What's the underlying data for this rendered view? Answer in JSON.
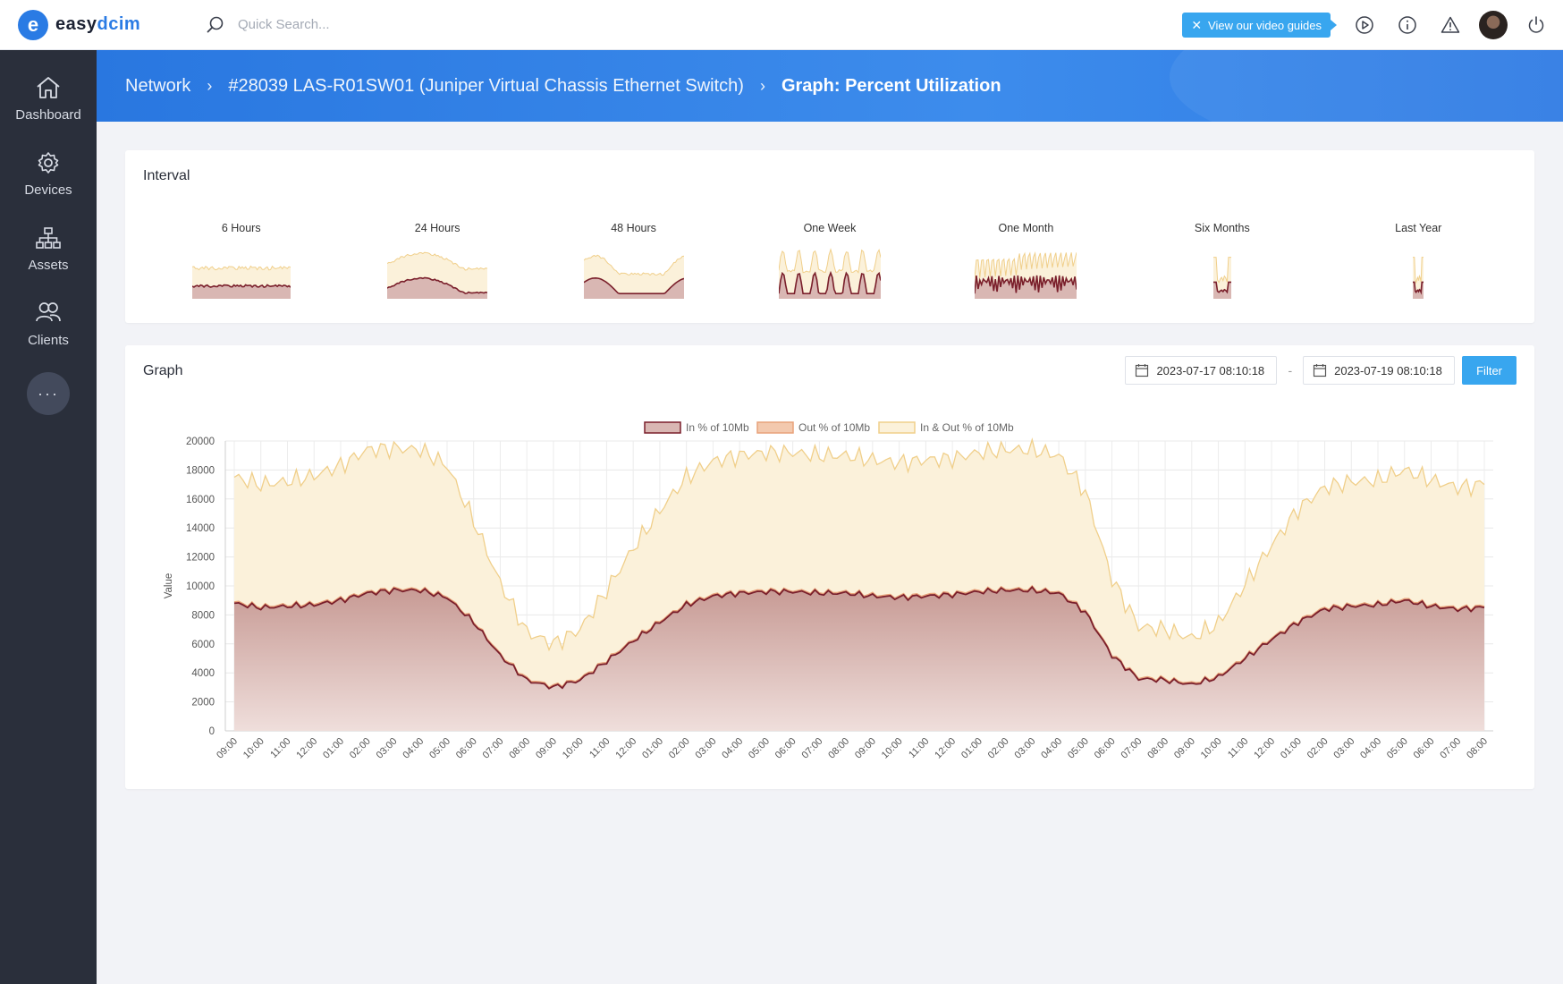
{
  "topbar": {
    "logo_letter": "e",
    "logo_text_a": "easy",
    "logo_text_b": "dcim",
    "search_placeholder": "Quick Search...",
    "guide_label": "View our video guides",
    "icons": [
      "play-circle-icon",
      "info-icon",
      "warning-icon",
      "avatar",
      "power-icon"
    ]
  },
  "sidebar": {
    "items": [
      {
        "label": "Dashboard",
        "icon": "home-icon"
      },
      {
        "label": "Devices",
        "icon": "gear-icon"
      },
      {
        "label": "Assets",
        "icon": "hierarchy-icon"
      },
      {
        "label": "Clients",
        "icon": "users-icon"
      }
    ],
    "more_label": "···"
  },
  "breadcrumb": {
    "items": [
      "Network",
      "#28039 LAS-R01SW01 (Juniper Virtual Chassis Ethernet Switch)",
      "Graph: Percent Utilization"
    ]
  },
  "interval": {
    "title": "Interval",
    "thumbs": [
      "6 Hours",
      "24 Hours",
      "48 Hours",
      "One Week",
      "One Month",
      "Six Months",
      "Last Year"
    ]
  },
  "graph": {
    "title": "Graph",
    "date_from": "2023-07-17 08:10:18",
    "date_sep": "-",
    "date_to": "2023-07-19 08:10:18",
    "filter_label": "Filter"
  },
  "colors": {
    "in_line": "#7a1f2b",
    "in_fill": "#d9b7b3",
    "out_line": "#e8a27a",
    "out_fill": "#f3c9ae",
    "total_line": "#f0cf8a",
    "total_fill": "#fbf1da",
    "accent": "#38a6ef"
  },
  "chart_data": {
    "type": "area",
    "ylabel": "Value",
    "ylim": [
      0,
      20000
    ],
    "yticks": [
      0,
      2000,
      4000,
      6000,
      8000,
      10000,
      12000,
      14000,
      16000,
      18000,
      20000
    ],
    "legend": [
      "In % of 10Mb",
      "Out % of 10Mb",
      "In & Out % of 10Mb"
    ],
    "legend_position": "top-center",
    "grid": true,
    "x": [
      "09:00",
      "10:00",
      "11:00",
      "12:00",
      "01:00",
      "02:00",
      "03:00",
      "04:00",
      "05:00",
      "06:00",
      "07:00",
      "08:00",
      "09:00",
      "10:00",
      "11:00",
      "12:00",
      "01:00",
      "02:00",
      "03:00",
      "04:00",
      "05:00",
      "06:00",
      "07:00",
      "08:00",
      "09:00",
      "10:00",
      "11:00",
      "12:00",
      "01:00",
      "02:00",
      "03:00",
      "04:00",
      "05:00",
      "06:00",
      "07:00",
      "08:00",
      "09:00",
      "10:00",
      "11:00",
      "12:00",
      "01:00",
      "02:00",
      "03:00",
      "04:00",
      "05:00",
      "06:00",
      "07:00",
      "08:00"
    ],
    "series": [
      {
        "name": "In % of 10Mb",
        "values": [
          8800,
          8500,
          8600,
          8700,
          9000,
          9500,
          9700,
          9700,
          9200,
          7500,
          5200,
          3500,
          3000,
          3500,
          4800,
          6200,
          7500,
          8700,
          9300,
          9500,
          9600,
          9600,
          9500,
          9500,
          9300,
          9200,
          9300,
          9400,
          9600,
          9700,
          9700,
          9500,
          8200,
          5200,
          3600,
          3500,
          3200,
          3700,
          5000,
          6300,
          7500,
          8400,
          8600,
          8700,
          9000,
          8600,
          8400,
          8500
        ]
      },
      {
        "name": "Out % of 10Mb",
        "values": [
          8900,
          8600,
          8700,
          8800,
          9100,
          9600,
          9800,
          9800,
          9300,
          7600,
          5300,
          3600,
          3100,
          3600,
          4900,
          6300,
          7600,
          8800,
          9400,
          9600,
          9700,
          9700,
          9600,
          9600,
          9400,
          9300,
          9400,
          9500,
          9700,
          9800,
          9800,
          9600,
          8300,
          5300,
          3700,
          3600,
          3300,
          3800,
          5100,
          6400,
          7600,
          8500,
          8700,
          8800,
          9100,
          8700,
          8500,
          8600
        ]
      },
      {
        "name": "In & Out % of 10Mb",
        "values": [
          17500,
          17000,
          17200,
          17600,
          18300,
          19400,
          19500,
          19400,
          18300,
          14500,
          10200,
          6800,
          6000,
          7000,
          9700,
          12600,
          15200,
          17500,
          18600,
          19000,
          19200,
          19200,
          19000,
          19000,
          18700,
          18500,
          18700,
          18800,
          19200,
          19400,
          19400,
          19000,
          16500,
          10500,
          7200,
          7000,
          6400,
          7400,
          10100,
          12800,
          15300,
          16800,
          17200,
          17300,
          18000,
          17300,
          16800,
          17000
        ]
      }
    ]
  }
}
